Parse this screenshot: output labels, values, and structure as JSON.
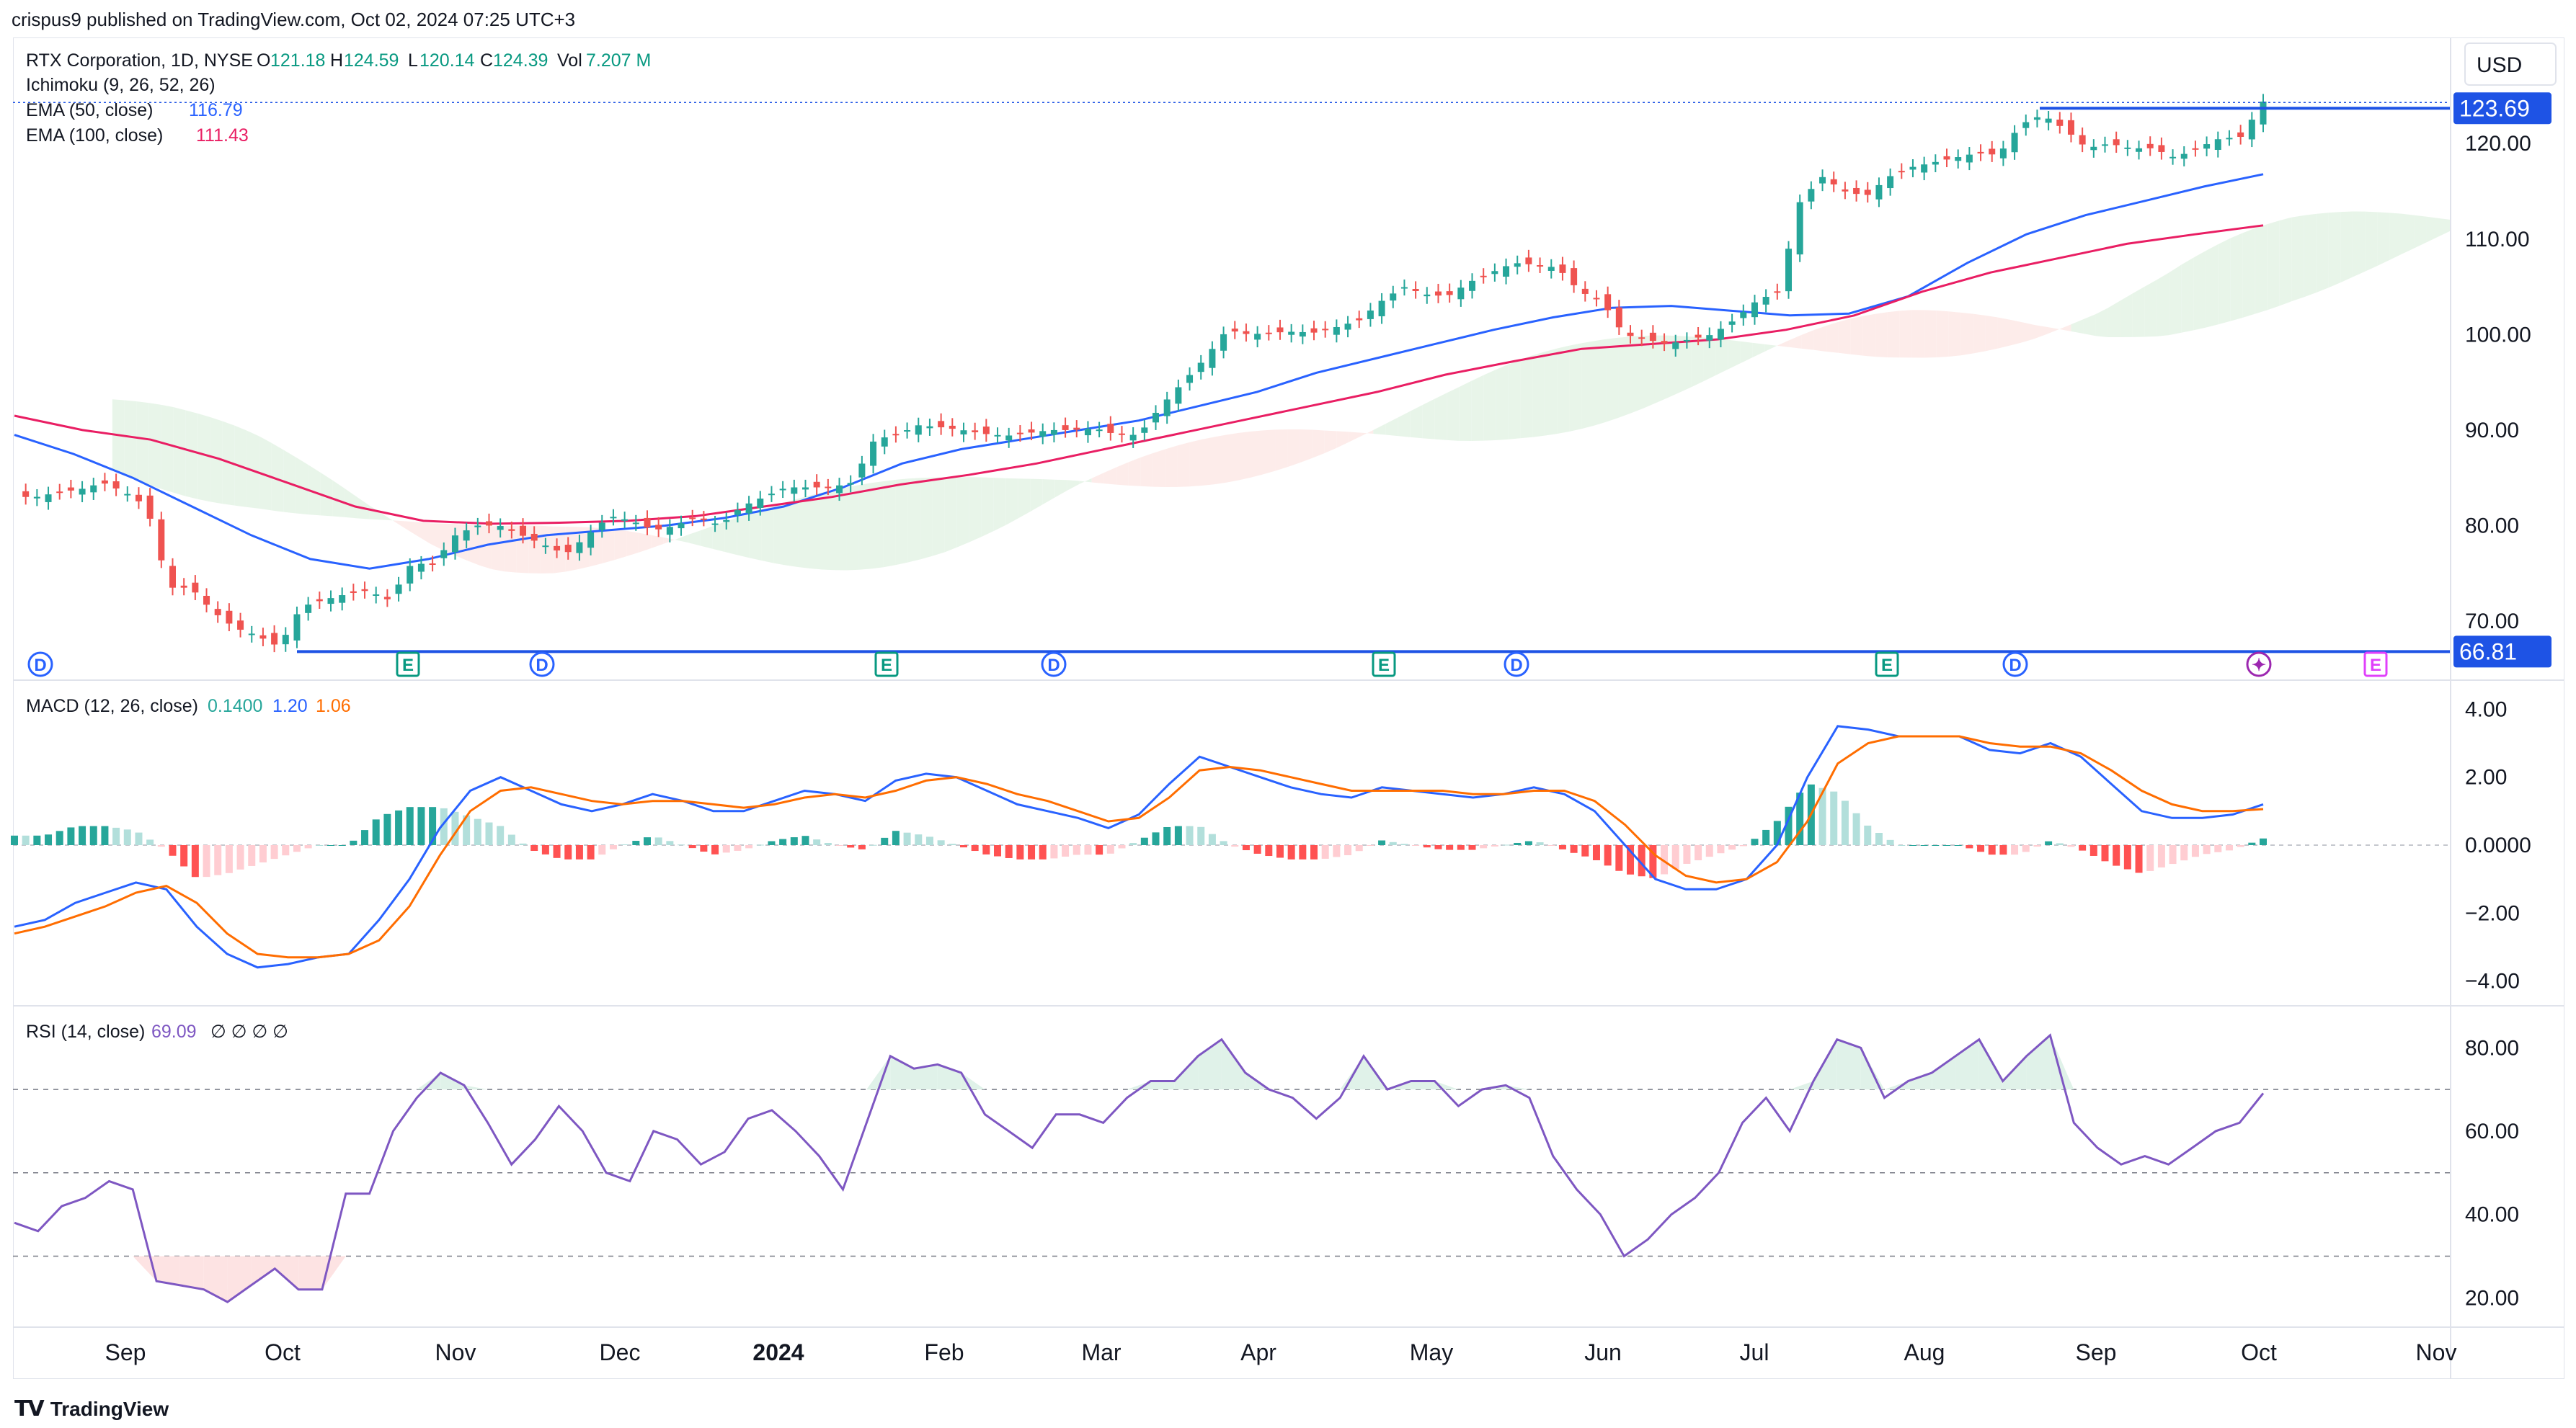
{
  "header": {
    "publisher_line": "crispus9 published on TradingView.com, Oct 02, 2024 07:25 UTC+3"
  },
  "legend": {
    "symbol": "RTX Corporation, 1D, NYSE",
    "o_label": "O",
    "o": "121.18",
    "h_label": "H",
    "h": "124.59",
    "l_label": "L",
    "l": "120.14",
    "c_label": "C",
    "c": "124.39",
    "vol_label": "Vol",
    "vol": "7.207 M",
    "ichimoku": "Ichimoku (9, 26, 52, 26)",
    "ema50_label": "EMA (50, close)",
    "ema50": "116.79",
    "ema100_label": "EMA (100, close)",
    "ema100": "111.43",
    "macd_label": "MACD (12, 26, close)",
    "macd_hist": "0.1400",
    "macd_line": "1.20",
    "macd_signal": "1.06",
    "rsi_label": "RSI (14, close)",
    "rsi": "69.09",
    "rsi_extra": "∅ ∅ ∅ ∅"
  },
  "currency": "USD",
  "footer": {
    "brand": "TradingView"
  },
  "colors": {
    "up": "#26a69a",
    "down": "#ef5350",
    "ema50": "#2962ff",
    "ema100": "#e91e63",
    "cloud_green": "#e8f5e9",
    "cloud_red": "#fdecea",
    "macd": "#2962ff",
    "signal": "#ff6d00",
    "rsi": "#7e57c2",
    "level": "#1e53e5"
  },
  "chart_data": [
    {
      "type": "candlestick",
      "title": "RTX Corporation, 1D, NYSE",
      "x_ticks": [
        "Sep",
        "Oct",
        "Nov",
        "Dec",
        "2024",
        "Feb",
        "Mar",
        "Apr",
        "May",
        "Jun",
        "Jul",
        "Aug",
        "Sep",
        "Oct",
        "Nov"
      ],
      "y_ticks": [
        "120.00",
        "110.00",
        "100.00",
        "90.00",
        "80.00",
        "70.00"
      ],
      "ylim": [
        64.5,
        130.5
      ],
      "price_levels": [
        {
          "label": "123.69",
          "value": 123.69
        },
        {
          "label": "66.81",
          "value": 66.81
        }
      ],
      "close_series": [
        83,
        83,
        83.5,
        83.8,
        84.5,
        83.5,
        82,
        73.5,
        73.5,
        71,
        69.3,
        68.5,
        67.3,
        71.5,
        72.2,
        72.8,
        73.2,
        72.2,
        76,
        76,
        79,
        80,
        80,
        79,
        78,
        77,
        79,
        81,
        80.5,
        79.5,
        80,
        81,
        80,
        82,
        83,
        84,
        84,
        84,
        84.5,
        89,
        89.5,
        90.5,
        90.3,
        90,
        89.6,
        89.4,
        89.7,
        90,
        90,
        90.2,
        89.5,
        89.5,
        92.5,
        95,
        97.5,
        100.5,
        100,
        100.2,
        100.3,
        100.2,
        100.8,
        101.5,
        103.5,
        105,
        104.2,
        104,
        105.5,
        106.5,
        107.5,
        107.3,
        107,
        104.5,
        103.5,
        100,
        99.5,
        99,
        99.5,
        100,
        101.5,
        103.5,
        104.5,
        114,
        116.5,
        115,
        114.5,
        116.5,
        117.5,
        118,
        118.5,
        119,
        118.8,
        122,
        123,
        121.5,
        119.5,
        120,
        119.5,
        119.5,
        118.5,
        119.5,
        120.5,
        120.7,
        124.39
      ],
      "events": [
        {
          "label": "D",
          "kind": "dividend"
        },
        {
          "label": "E",
          "kind": "earnings"
        },
        {
          "label": "D",
          "kind": "dividend"
        },
        {
          "label": "E",
          "kind": "earnings"
        },
        {
          "label": "D",
          "kind": "dividend"
        },
        {
          "label": "E",
          "kind": "earnings"
        },
        {
          "label": "D",
          "kind": "dividend"
        },
        {
          "label": "E",
          "kind": "earnings"
        },
        {
          "label": "D",
          "kind": "dividend"
        },
        {
          "label": "✦",
          "kind": "special"
        },
        {
          "label": "E",
          "kind": "earnings-upcoming"
        }
      ],
      "ema50_series": [
        89.5,
        87.5,
        85,
        82,
        79,
        76.5,
        75.5,
        76.5,
        78,
        79,
        79.5,
        80,
        80.8,
        82,
        84,
        86.5,
        88,
        89,
        90,
        91,
        92.5,
        94,
        96,
        97.5,
        99,
        100.5,
        101.8,
        102.8,
        103,
        102.5,
        102,
        102.2,
        104,
        107.5,
        110.5,
        112.5,
        114,
        115.5,
        116.79
      ],
      "ema100_series": [
        91.5,
        90,
        89,
        87,
        84.5,
        82,
        80.5,
        80.2,
        80.3,
        80.5,
        81,
        82,
        83,
        84.3,
        85.3,
        86.5,
        88,
        89.5,
        91,
        92.5,
        94,
        95.8,
        97.2,
        98.5,
        99,
        99.5,
        100.5,
        102,
        104.5,
        106.5,
        108,
        109.5,
        110.5,
        111.43
      ]
    },
    {
      "type": "macd",
      "title": "MACD (12, 26, close)",
      "y_ticks": [
        "4.00",
        "2.00",
        "0.0000",
        "−2.00",
        "−4.00"
      ],
      "ylim": [
        -4.6,
        4.6
      ],
      "macd_series": [
        -2.4,
        -2.2,
        -1.7,
        -1.4,
        -1.1,
        -1.3,
        -2.4,
        -3.2,
        -3.6,
        -3.5,
        -3.3,
        -3.2,
        -2.2,
        -1,
        0.5,
        1.6,
        2,
        1.6,
        1.2,
        1,
        1.2,
        1.5,
        1.3,
        1,
        1,
        1.3,
        1.6,
        1.5,
        1.3,
        1.9,
        2.1,
        2,
        1.6,
        1.2,
        1,
        0.8,
        0.5,
        0.9,
        1.8,
        2.6,
        2.3,
        2,
        1.7,
        1.5,
        1.4,
        1.7,
        1.6,
        1.5,
        1.4,
        1.5,
        1.7,
        1.5,
        1,
        0,
        -1,
        -1.3,
        -1.3,
        -1,
        0,
        2,
        3.5,
        3.4,
        3.2,
        3.2,
        3.2,
        2.8,
        2.7,
        3,
        2.6,
        1.8,
        1,
        0.8,
        0.8,
        0.9,
        1.2
      ],
      "signal_series": [
        -2.6,
        -2.4,
        -2.1,
        -1.8,
        -1.4,
        -1.2,
        -1.7,
        -2.6,
        -3.2,
        -3.3,
        -3.3,
        -3.2,
        -2.8,
        -1.8,
        -0.3,
        1,
        1.6,
        1.7,
        1.5,
        1.3,
        1.2,
        1.3,
        1.3,
        1.2,
        1.1,
        1.2,
        1.4,
        1.5,
        1.4,
        1.6,
        1.9,
        2,
        1.8,
        1.5,
        1.3,
        1,
        0.7,
        0.8,
        1.4,
        2.2,
        2.3,
        2.2,
        2,
        1.8,
        1.6,
        1.6,
        1.6,
        1.6,
        1.5,
        1.5,
        1.6,
        1.6,
        1.3,
        0.6,
        -0.3,
        -0.9,
        -1.1,
        -1,
        -0.5,
        0.7,
        2.4,
        3,
        3.2,
        3.2,
        3.2,
        3,
        2.9,
        2.9,
        2.7,
        2.2,
        1.6,
        1.2,
        1,
        1,
        1.06
      ]
    },
    {
      "type": "rsi",
      "title": "RSI (14, close)",
      "y_ticks": [
        "80.00",
        "60.00",
        "40.00",
        "20.00"
      ],
      "ylim": [
        14,
        88
      ],
      "bands": [
        70,
        50,
        30
      ],
      "rsi_series": [
        38,
        36,
        42,
        44,
        48,
        46,
        24,
        23,
        22,
        19,
        23,
        27,
        22,
        22,
        45,
        45,
        60,
        68,
        74,
        71,
        62,
        52,
        58,
        66,
        60,
        50,
        48,
        60,
        58,
        52,
        55,
        63,
        65,
        60,
        54,
        46,
        62,
        78,
        75,
        76,
        74,
        64,
        60,
        56,
        64,
        64,
        62,
        68,
        72,
        72,
        78,
        82,
        74,
        70,
        68,
        63,
        68,
        78,
        70,
        72,
        72,
        66,
        70,
        71,
        68,
        54,
        46,
        40,
        30,
        34,
        40,
        44,
        50,
        62,
        68,
        60,
        72,
        82,
        80,
        68,
        72,
        74,
        78,
        82,
        72,
        78,
        83,
        62,
        56,
        52,
        54,
        52,
        56,
        60,
        62,
        69.09
      ]
    }
  ]
}
